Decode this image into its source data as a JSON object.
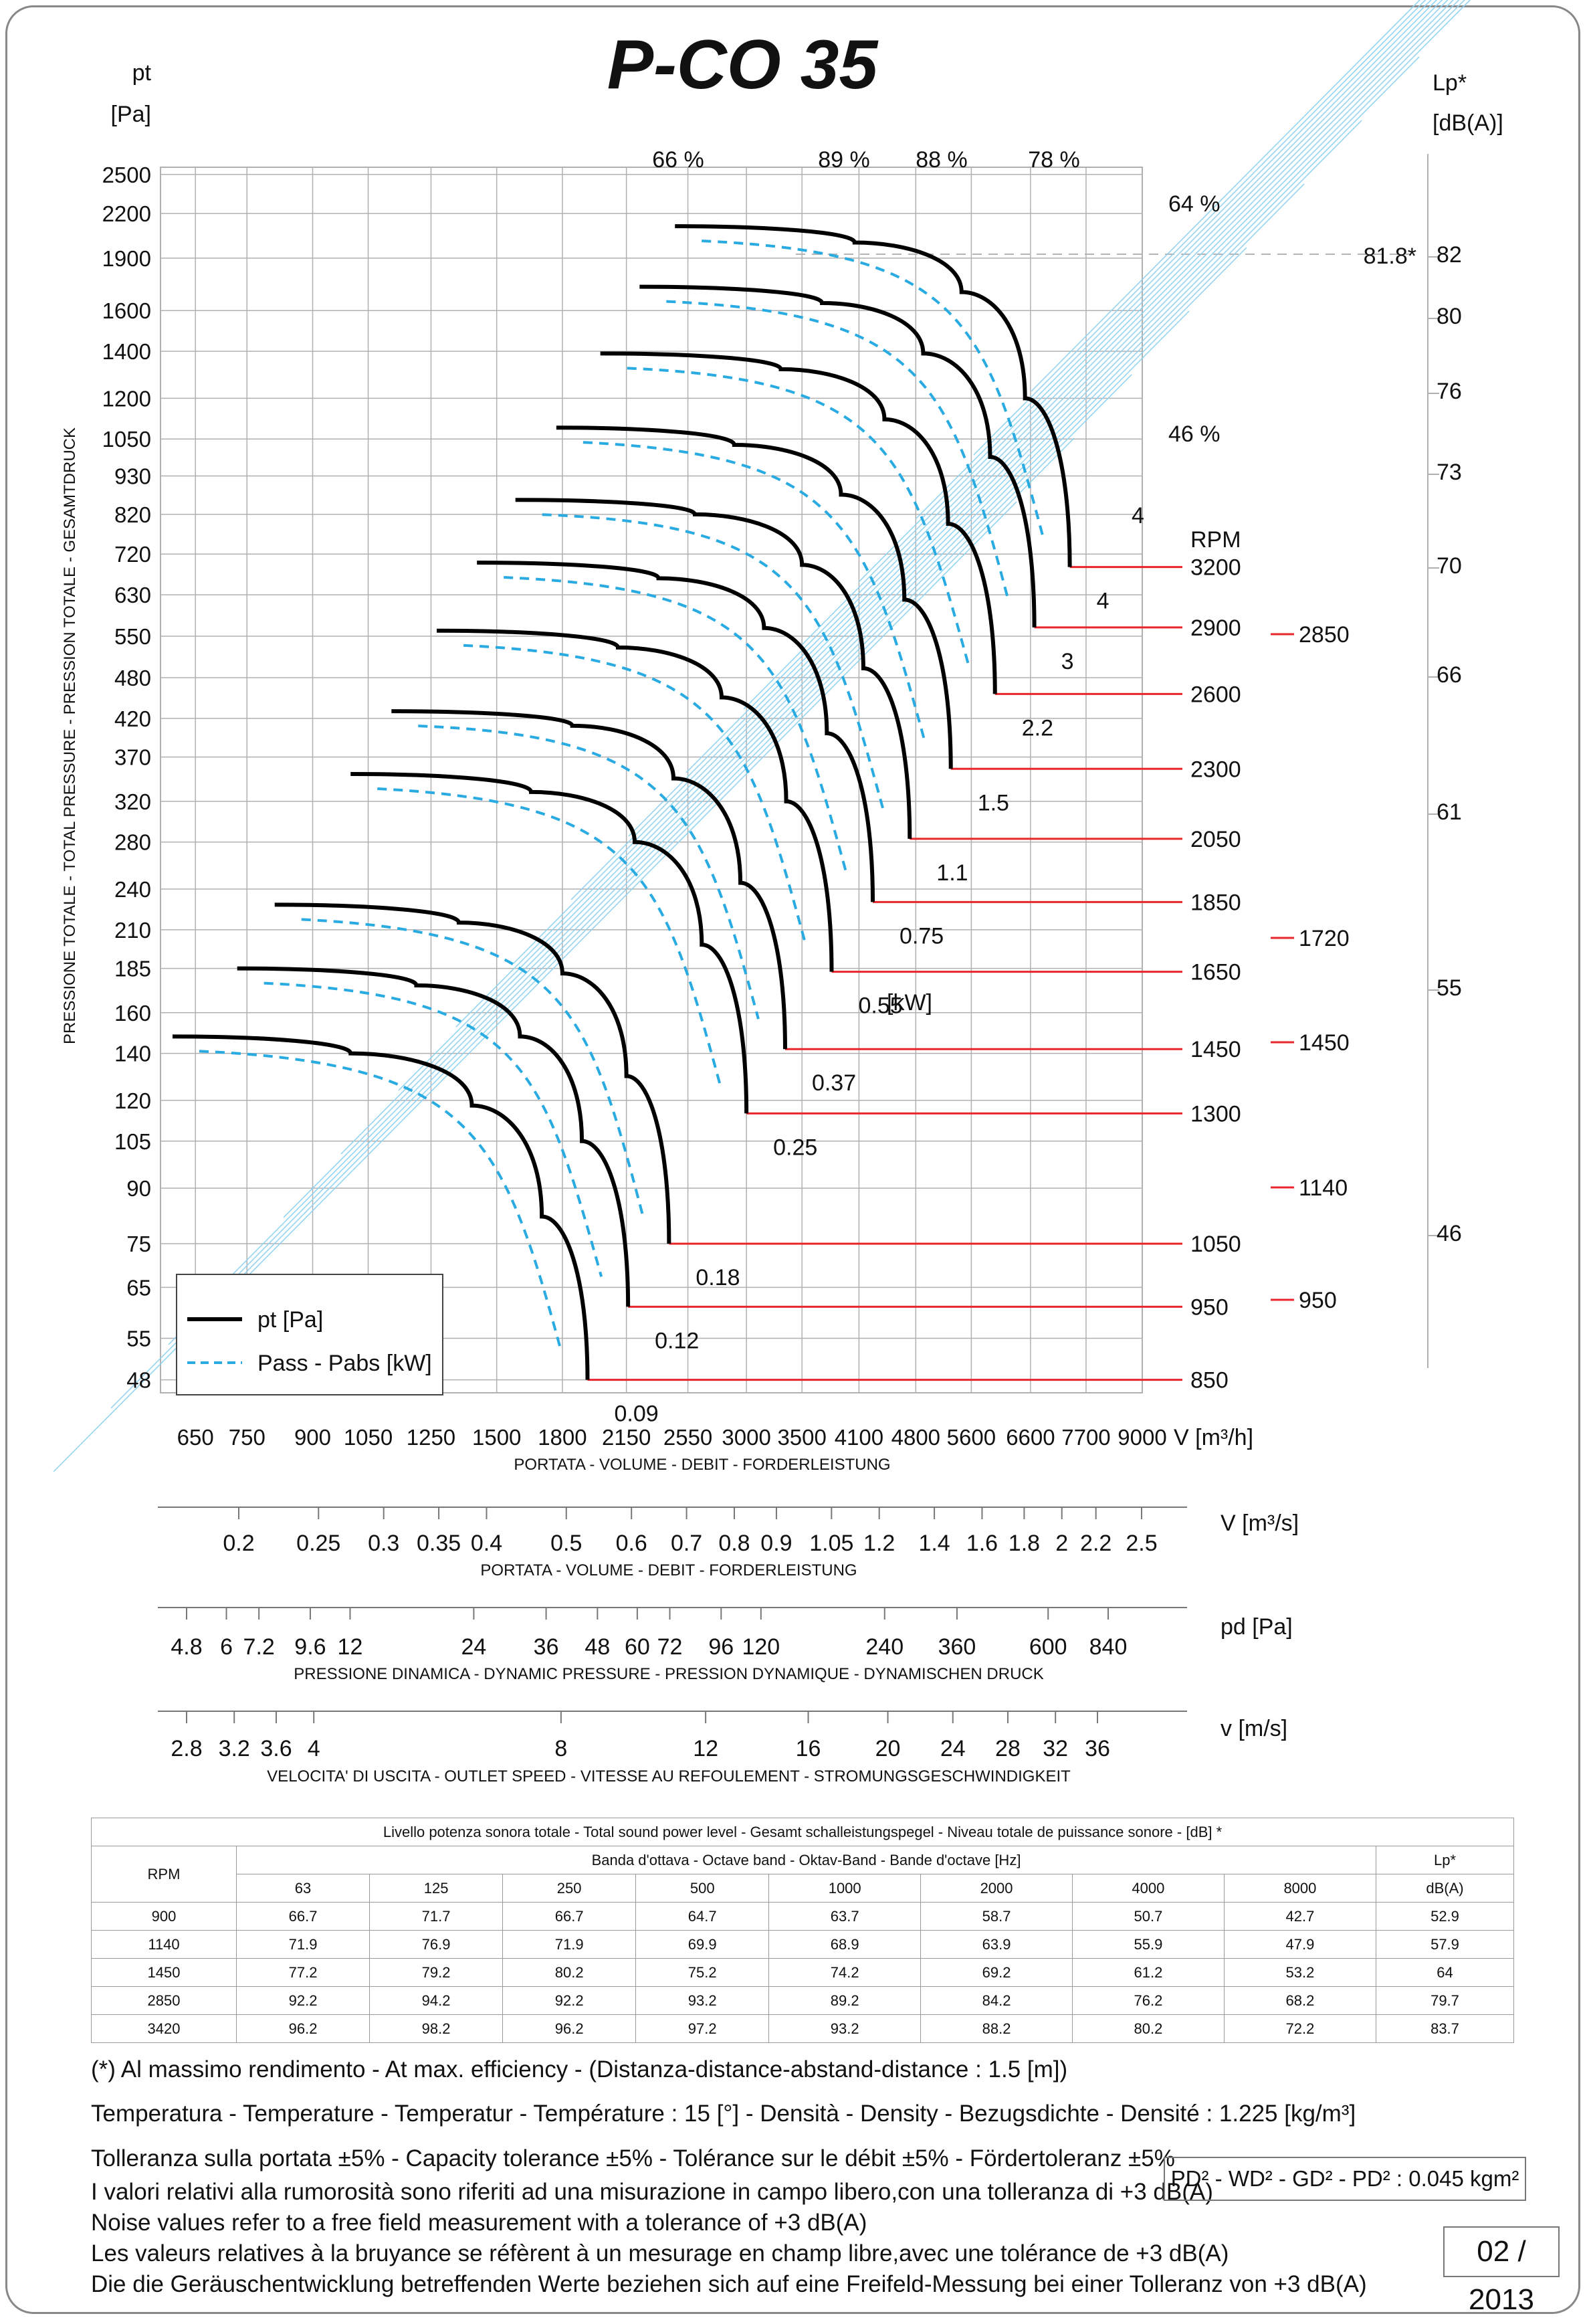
{
  "title": "P-CO 35",
  "colors": {
    "pt_curve": "#000000",
    "power_curve": "#29abe2",
    "noise_line": "#e8262b",
    "grid": "#b0b0b0",
    "efficiency_line": "#8dd3f1"
  },
  "left_axis": {
    "unit_line1": "pt",
    "unit_line2": "[Pa]",
    "ticks": [
      "48",
      "55",
      "65",
      "75",
      "90",
      "105",
      "120",
      "140",
      "160",
      "185",
      "210",
      "240",
      "280",
      "320",
      "370",
      "420",
      "480",
      "550",
      "630",
      "720",
      "820",
      "930",
      "1050",
      "1200",
      "1400",
      "1600",
      "1900",
      "2200",
      "2500"
    ],
    "label": "PRESSIONE TOTALE - TOTAL PRESSURE - PRESSION TOTALE - GESAMTDRUCK"
  },
  "right_axis": {
    "unit_line1": "Lp*",
    "unit_line2": "[dB(A)]",
    "ticks": [
      "46",
      "55",
      "61",
      "66",
      "70",
      "73",
      "76",
      "80",
      "82"
    ],
    "max_marker": "81.8*"
  },
  "x_axis": {
    "unit": "V [m³/h]",
    "ticks": [
      "650",
      "750",
      "900",
      "1050",
      "1250",
      "1500",
      "1800",
      "2150",
      "2550",
      "3000",
      "3500",
      "4100",
      "4800",
      "5600",
      "6600",
      "7700",
      "9000"
    ],
    "label": "PORTATA - VOLUME - DEBIT - FORDERLEISTUNG"
  },
  "scale_m3s": {
    "unit": "V  [m³/s]",
    "ticks": [
      "0.2",
      "0.25",
      "0.3",
      "0.35",
      "0.4",
      "0.5",
      "0.6",
      "0.7",
      "0.8",
      "0.9",
      "1.05",
      "1.2",
      "1.4",
      "1.6",
      "1.8",
      "2",
      "2.2",
      "2.5"
    ],
    "label": "PORTATA - VOLUME - DEBIT - FORDERLEISTUNG"
  },
  "scale_pd": {
    "unit": "pd  [Pa]",
    "ticks": [
      "4.8",
      "6",
      "7.2",
      "9.6",
      "12",
      "24",
      "36",
      "48",
      "60",
      "72",
      "96",
      "120",
      "240",
      "360",
      "600",
      "840"
    ],
    "label": "PRESSIONE DINAMICA - DYNAMIC PRESSURE - PRESSION DYNAMIQUE - DYNAMISCHEN DRUCK"
  },
  "scale_v": {
    "unit": "v  [m/s]",
    "ticks": [
      "2.8",
      "3.2",
      "3.6",
      "4",
      "8",
      "12",
      "16",
      "20",
      "24",
      "28",
      "32",
      "36"
    ],
    "label": "VELOCITA' DI USCITA - OUTLET SPEED - VITESSE AU REFOULEMENT - STROMUNGSGESCHWINDIGKEIT"
  },
  "efficiency_labels": [
    "66 %",
    "89 %",
    "88 %",
    "78 %",
    "64 %",
    "46 %"
  ],
  "rpm_header": "RPM",
  "rpm_labels": [
    "850",
    "950",
    "1050",
    "1300",
    "1450",
    "1650",
    "1850",
    "2050",
    "2300",
    "2600",
    "2900",
    "3200"
  ],
  "noise_rpm_labels": [
    "950",
    "1140",
    "1450",
    "1720",
    "2850"
  ],
  "power_unit": "[kW]",
  "power_labels": [
    "0.09",
    "0.12",
    "0.18",
    "0.25",
    "0.37",
    "0.55",
    "0.75",
    "1.1",
    "1.5",
    "2.2",
    "3",
    "4"
  ],
  "legend": {
    "pt": "pt [Pa]",
    "power": "Pass - Pabs [kW]"
  },
  "chart_data": {
    "type": "line",
    "title": "P-CO 35",
    "xlabel": "V [m³/h]",
    "ylabel": "pt [Pa]",
    "x_scale": "log",
    "y_scale": "log",
    "xlim": [
      590,
      9000
    ],
    "ylim": [
      46,
      2560
    ],
    "series": [
      {
        "name": "850",
        "x": [
          610,
          1000,
          1400,
          1700,
          1930
        ],
        "y": [
          148,
          140,
          118,
          82,
          48
        ]
      },
      {
        "name": "950",
        "x": [
          730,
          1200,
          1600,
          1900,
          2160
        ],
        "y": [
          185,
          175,
          148,
          105,
          61
        ]
      },
      {
        "name": "1050",
        "x": [
          810,
          1350,
          1800,
          2150,
          2420
        ],
        "y": [
          228,
          215,
          182,
          130,
          75
        ]
      },
      {
        "name": "1300",
        "x": [
          1000,
          1650,
          2200,
          2650,
          3000
        ],
        "y": [
          350,
          330,
          280,
          200,
          115
        ]
      },
      {
        "name": "1450",
        "x": [
          1120,
          1850,
          2450,
          2950,
          3340
        ],
        "y": [
          430,
          410,
          345,
          245,
          142
        ]
      },
      {
        "name": "1650",
        "x": [
          1270,
          2100,
          2800,
          3350,
          3800
        ],
        "y": [
          560,
          530,
          450,
          320,
          183
        ]
      },
      {
        "name": "1850",
        "x": [
          1420,
          2350,
          3150,
          3750,
          4260
        ],
        "y": [
          700,
          665,
          565,
          400,
          230
        ]
      },
      {
        "name": "2050",
        "x": [
          1580,
          2600,
          3500,
          4150,
          4720
        ],
        "y": [
          860,
          820,
          695,
          495,
          283
        ]
      },
      {
        "name": "2300",
        "x": [
          1770,
          2900,
          3900,
          4650,
          5290
        ],
        "y": [
          1090,
          1030,
          875,
          620,
          356
        ]
      },
      {
        "name": "2600",
        "x": [
          2000,
          3300,
          4400,
          5250,
          5980
        ],
        "y": [
          1390,
          1320,
          1120,
          795,
          455
        ]
      },
      {
        "name": "2900",
        "x": [
          2230,
          3700,
          4900,
          5900,
          6670
        ],
        "y": [
          1730,
          1640,
          1390,
          990,
          566
        ]
      },
      {
        "name": "3200",
        "x": [
          2460,
          4050,
          5450,
          6500,
          7360
        ],
        "y": [
          2110,
          2000,
          1700,
          1200,
          690
        ]
      }
    ],
    "rpm_values": [
      850,
      950,
      1050,
      1300,
      1450,
      1650,
      1850,
      2050,
      2300,
      2600,
      2900,
      3200
    ],
    "power_kw": [
      0.09,
      0.12,
      0.18,
      0.25,
      0.37,
      0.55,
      0.75,
      1.1,
      1.5,
      2.2,
      3,
      4
    ],
    "efficiency_percent": [
      46,
      64,
      66,
      78,
      88,
      89
    ],
    "max_sound_level_dBA": 81.8,
    "legend_position": "bottom-left",
    "grid": true
  },
  "sound_table": {
    "title": "Livello potenza sonora totale - Total sound power level - Gesamt schalleistungspegel - Niveau totale de puissance sonore - [dB]   *",
    "band_header": "Banda d'ottava - Octave band - Oktav-Band - Bande d'octave [Hz]",
    "rpm_header": "RPM",
    "lp_header": "Lp*",
    "lp_unit": "dB(A)",
    "bands": [
      "63",
      "125",
      "250",
      "500",
      "1000",
      "2000",
      "4000",
      "8000"
    ],
    "rows": [
      [
        "900",
        "66.7",
        "71.7",
        "66.7",
        "64.7",
        "63.7",
        "58.7",
        "50.7",
        "42.7",
        "52.9"
      ],
      [
        "1140",
        "71.9",
        "76.9",
        "71.9",
        "69.9",
        "68.9",
        "63.9",
        "55.9",
        "47.9",
        "57.9"
      ],
      [
        "1450",
        "77.2",
        "79.2",
        "80.2",
        "75.2",
        "74.2",
        "69.2",
        "61.2",
        "53.2",
        "64"
      ],
      [
        "2850",
        "92.2",
        "94.2",
        "92.2",
        "93.2",
        "89.2",
        "84.2",
        "76.2",
        "68.2",
        "79.7"
      ],
      [
        "3420",
        "96.2",
        "98.2",
        "96.2",
        "97.2",
        "93.2",
        "88.2",
        "80.2",
        "72.2",
        "83.7"
      ]
    ]
  },
  "notes": {
    "efficiency": "(*) Al massimo rendimento - At max. efficiency - (Distanza-distance-abstand-distance : 1.5 [m])",
    "conditions": "Temperatura - Temperature - Temperatur - Température : 15 [°]  -  Densità - Density - Bezugsdichte - Densité : 1.225 [kg/m³]",
    "tolerance": "Tolleranza sulla portata  ±5% - Capacity tolerance ±5% - Tolérance sur le débit ±5% - Fördertoleranz ±5%",
    "noise_it": "I valori relativi alla rumorosità sono riferiti ad una misurazione in campo libero,con una tolleranza di +3 dB(A)",
    "noise_en": "Noise values refer to a free field measurement with a tolerance of +3 dB(A)",
    "noise_fr": "Les valeurs relatives à la bruyance se réfèrent à un mesurage en champ libre,avec une tolérance de +3 dB(A)",
    "noise_de": "Die die Geräuschentwicklung betreffenden Werte beziehen sich auf eine Freifeld-Messung bei einer Tolleranz von +3 dB(A)",
    "inertia": "PD² -  WD² - GD² -  PD²  :  0.045 kgm²",
    "date": "02 / 2013"
  }
}
